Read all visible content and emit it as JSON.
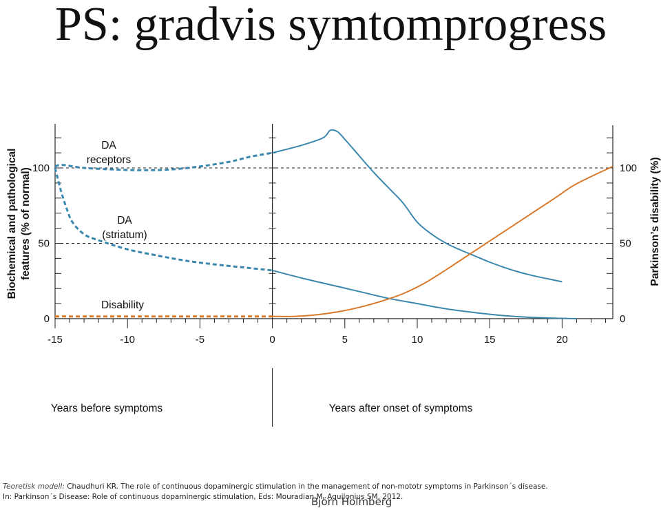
{
  "slide": {
    "title": "PS: gradvis symtomprogress",
    "author": "Björn Holmberg"
  },
  "reference": {
    "model_label": "Teoretisk modell:",
    "line1": " Chaudhuri KR. The role of continuous dopaminergic stimulation in the management of non-mototr symptoms in Parkinson´s disease.",
    "line2": "In: Parkinson´s Disease: Role of continuous dopaminergic stimulation, Eds: Mouradian M, Aquilonius SM, 2012."
  },
  "colors": {
    "blue": "#3a87ad",
    "orange": "#d9792b",
    "axis": "#222222",
    "dashed_ref": "#222222"
  },
  "chart_data": {
    "type": "line",
    "title": "",
    "xlim": [
      -15,
      23.5
    ],
    "x_ticks": [
      -15,
      -10,
      -5,
      0,
      5,
      10,
      15,
      20
    ],
    "x_tick_labels": [
      "-15",
      "-10",
      "-5",
      "0",
      "5",
      "10",
      "15",
      "20"
    ],
    "left_axis": {
      "label_line1": "Biochemical and pathological",
      "label_line2": "features (% of normal)",
      "ylim": [
        0,
        130
      ],
      "ticks": [
        0,
        50,
        100
      ],
      "tick_labels": [
        "0",
        "50",
        "100"
      ]
    },
    "right_axis": {
      "label": "Parkinson’s disability (%)",
      "ylim": [
        0,
        130
      ],
      "ticks": [
        0,
        50,
        100
      ],
      "tick_labels": [
        "0",
        "50",
        "100"
      ]
    },
    "reference_lines": [
      100,
      50
    ],
    "region_labels": {
      "before": "Years before symptoms",
      "after": "Years after onset of symptoms"
    },
    "series": [
      {
        "name": "DA receptors",
        "label_lines": [
          "DA",
          "receptors"
        ],
        "color": "blue",
        "dashed_x": [
          -15,
          -14.5,
          -13,
          -11,
          -9,
          -7,
          -5,
          -3,
          -1.5,
          0
        ],
        "dashed_y": [
          101,
          102,
          100,
          99,
          98.5,
          99,
          101,
          104,
          107.5,
          110
        ],
        "solid_x": [
          0,
          2,
          3.5,
          4,
          4.5,
          5,
          6,
          7,
          8,
          9,
          10,
          11,
          12,
          13,
          14,
          15,
          16,
          17,
          18,
          19,
          20
        ],
        "solid_y": [
          110,
          115,
          120,
          125,
          124,
          119,
          108,
          97,
          87,
          77,
          64,
          56,
          50,
          45.5,
          41.5,
          37.5,
          34,
          31,
          28.5,
          26.5,
          24.5
        ]
      },
      {
        "name": "DA (striatum)",
        "label_lines": [
          "DA",
          "(striatum)"
        ],
        "color": "blue",
        "dashed_x": [
          -15,
          -14.6,
          -14.2,
          -13.8,
          -13,
          -12,
          -10,
          -8,
          -6,
          -4,
          -2,
          0
        ],
        "dashed_y": [
          100,
          85,
          73,
          64,
          56,
          52,
          46,
          42,
          38.5,
          36,
          34,
          32
        ],
        "solid_x": [
          0,
          2,
          4,
          6,
          8,
          10,
          12,
          14,
          16,
          18,
          20,
          21
        ],
        "solid_y": [
          32,
          27,
          22.5,
          18,
          13.5,
          10,
          6.5,
          4,
          2,
          0.8,
          0.2,
          0
        ]
      },
      {
        "name": "Disability",
        "label_lines": [
          "Disability"
        ],
        "color": "orange",
        "dashed_x": [
          -15,
          0
        ],
        "dashed_y": [
          1.5,
          1.5
        ],
        "solid_x": [
          0,
          1.5,
          3,
          4.5,
          6,
          7.5,
          9,
          10.5,
          12,
          13.5,
          15,
          16.5,
          18,
          19.5,
          21,
          23.5
        ],
        "solid_y": [
          1.5,
          1.5,
          2.5,
          4.5,
          7.5,
          11.5,
          16.5,
          23.5,
          32.5,
          42,
          51.5,
          61,
          70.5,
          80,
          89.5,
          101
        ]
      }
    ]
  }
}
